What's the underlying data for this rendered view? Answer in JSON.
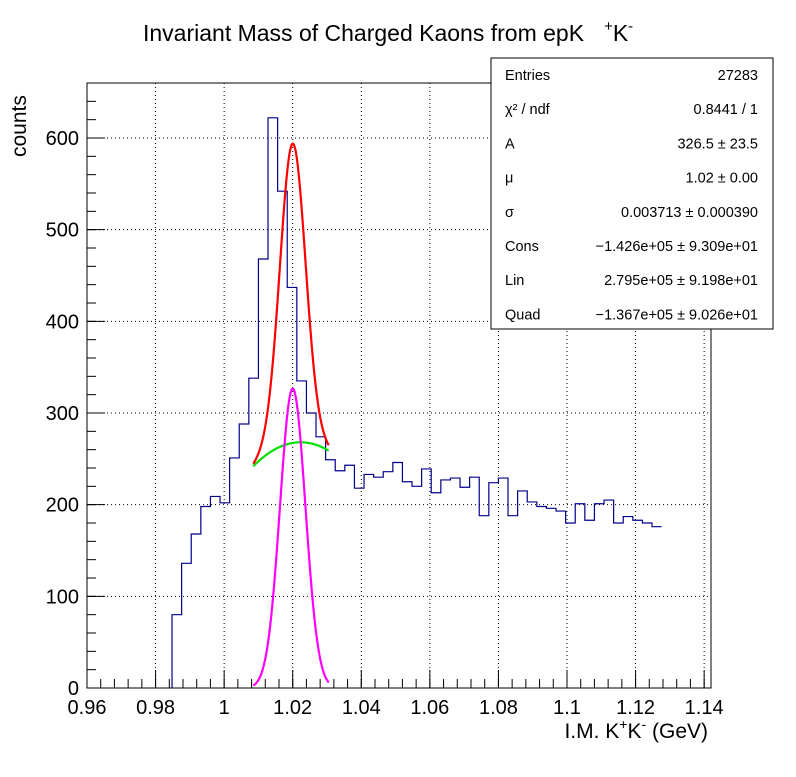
{
  "chart_data": {
    "type": "histogram",
    "title_main": "Invariant Mass of Charged Kaons from epK",
    "title_sup1": "+",
    "title_k": "K",
    "title_sup2": "-",
    "ylabel": "counts",
    "xlabel_pre": "I.M. K",
    "xlabel_sup1": "+",
    "xlabel_k": "K",
    "xlabel_sup2": "-",
    "xlabel_unit": " (GeV)",
    "xlim": [
      0.96,
      1.142
    ],
    "ylim": [
      0,
      660
    ],
    "grid": true,
    "xticks": [
      0.96,
      0.98,
      1.0,
      1.02,
      1.04,
      1.06,
      1.08,
      1.1,
      1.12,
      1.14
    ],
    "xtick_labels": [
      "0.96",
      "0.98",
      "1",
      "1.02",
      "1.04",
      "1.06",
      "1.08",
      "1.1",
      "1.12",
      "1.14"
    ],
    "yticks": [
      0,
      100,
      200,
      300,
      400,
      500,
      600
    ],
    "ytick_labels": [
      "0",
      "100",
      "200",
      "300",
      "400",
      "500",
      "600"
    ],
    "bin_width": 0.0028,
    "bin_start": 0.9848,
    "histogram_values": [
      80,
      136,
      168,
      198,
      209,
      202,
      251,
      288,
      338,
      468,
      622,
      542,
      437,
      335,
      300,
      274,
      249,
      237,
      243,
      218,
      233,
      230,
      236,
      246,
      225,
      220,
      239,
      213,
      227,
      229,
      219,
      230,
      188,
      224,
      229,
      188,
      215,
      203,
      198,
      196,
      193,
      180,
      201,
      183,
      201,
      205,
      180,
      187,
      183,
      180,
      176
    ],
    "fit_total": {
      "color": "#ff0000",
      "x_range": [
        1.0085,
        1.0305
      ]
    },
    "fit_background": {
      "color": "#00e000",
      "x_range": [
        1.0085,
        1.0305
      ],
      "cons": -142600,
      "lin": 279500,
      "quad": -136700
    },
    "fit_signal": {
      "color": "#ff00ff",
      "x_range": [
        1.0085,
        1.0305
      ],
      "A": 326.5,
      "mu": 1.02,
      "sigma": 0.003713
    },
    "stats_box": {
      "rows": [
        {
          "label": "Entries",
          "value": "27283"
        },
        {
          "label": "χ² / ndf",
          "value": "0.8441 / 1"
        },
        {
          "label": "A",
          "value": "326.5 ± 23.5"
        },
        {
          "label": "μ",
          "value": "1.02 ± 0.00"
        },
        {
          "label": "σ",
          "value": "0.003713 ± 0.000390"
        },
        {
          "label": "Cons",
          "value": "−1.426e+05 ± 9.309e+01"
        },
        {
          "label": "Lin",
          "value": "2.795e+05 ± 9.198e+01"
        },
        {
          "label": "Quad",
          "value": "−1.367e+05 ± 9.026e+01"
        }
      ]
    },
    "colors": {
      "histogram": "#00008b",
      "frame": "#000000",
      "grid": "#000000"
    }
  }
}
